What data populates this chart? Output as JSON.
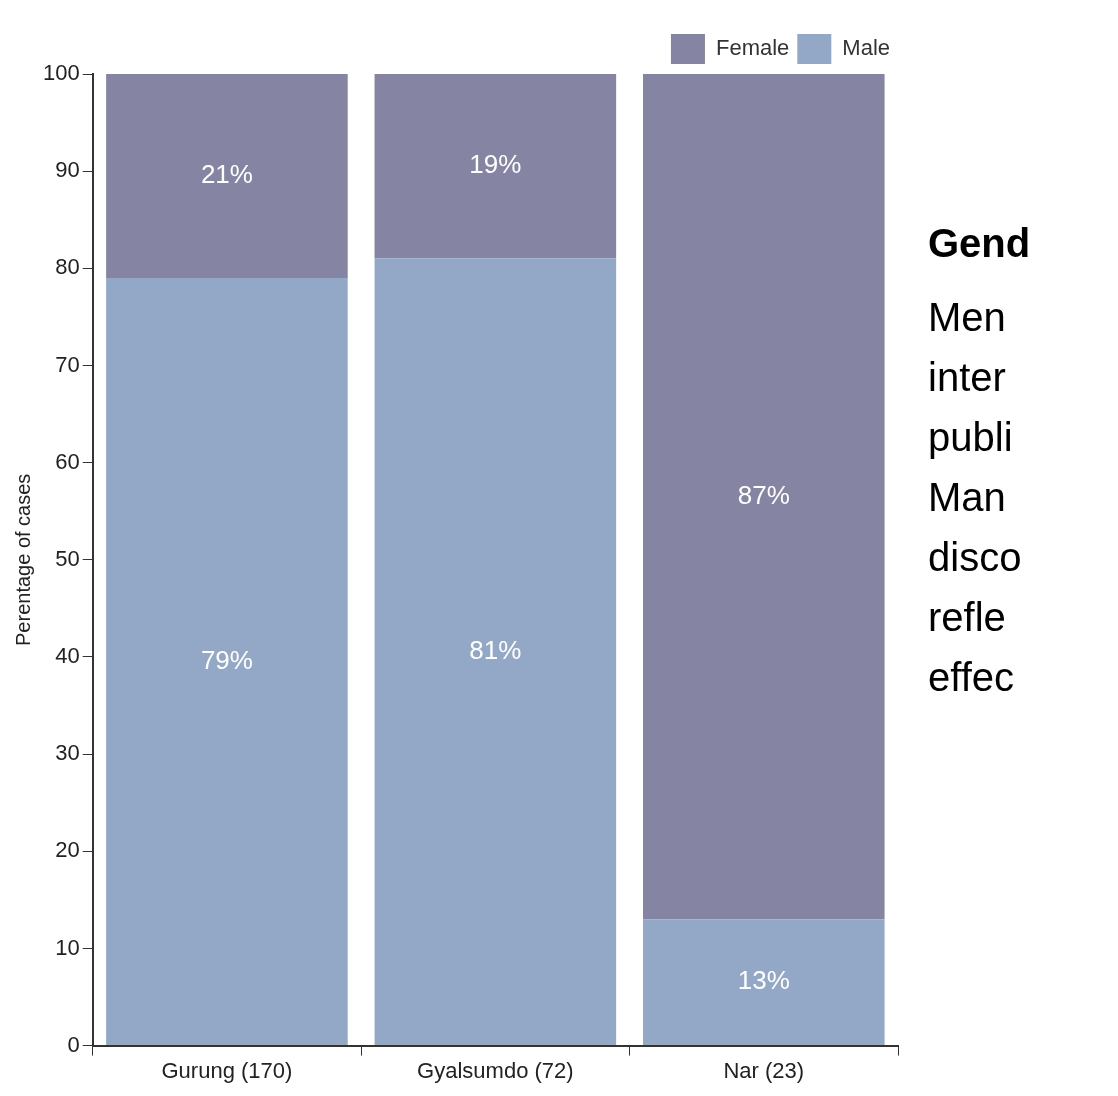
{
  "chart_data": {
    "type": "bar",
    "stacked": true,
    "ylabel": "Perentage of cases",
    "categories": [
      "Gurung (170)",
      "Gyalsumdo (72)",
      "Nar (23)"
    ],
    "series": [
      {
        "name": "Male",
        "color": "#93a8c7",
        "values": [
          79,
          81,
          13
        ],
        "value_labels": [
          "79%",
          "81%",
          "13%"
        ]
      },
      {
        "name": "Female",
        "color": "#8585a3",
        "values": [
          21,
          19,
          87
        ],
        "value_labels": [
          "21%",
          "19%",
          "87%"
        ]
      }
    ],
    "ylim": [
      0,
      100
    ],
    "yticks": [
      0,
      10,
      20,
      30,
      40,
      50,
      60,
      70,
      80,
      90,
      100
    ],
    "grid": false,
    "legend": "top right",
    "annotations": [
      "Gend",
      "Men",
      "inter",
      "publi",
      "Man",
      "disco",
      "refle",
      "effec"
    ]
  }
}
